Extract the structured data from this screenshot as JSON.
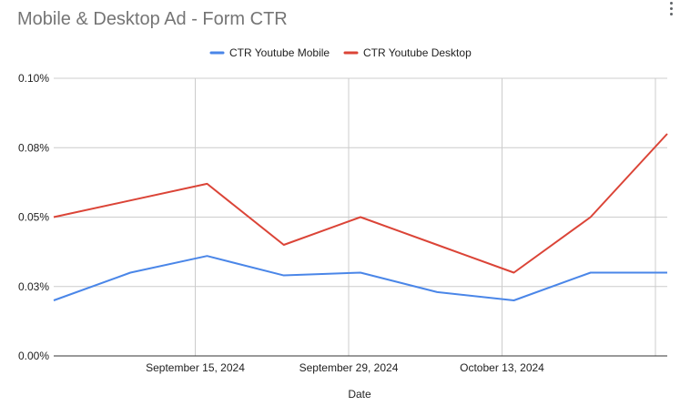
{
  "title": "Mobile & Desktop Ad - Form CTR",
  "menu_icon": "more-vert-icon",
  "chart_data": {
    "type": "line",
    "title": "Mobile & Desktop Ad - Form CTR",
    "xlabel": "Date",
    "ylabel": "",
    "x": [
      "2024-09-01",
      "2024-09-08",
      "2024-09-15",
      "2024-09-22",
      "2024-09-29",
      "2024-10-06",
      "2024-10-13",
      "2024-10-20",
      "2024-10-27"
    ],
    "x_ticks": [
      "September 15, 2024",
      "September 29, 2024",
      "October 13, 2024"
    ],
    "y_ticks": [
      "0.00%",
      "0.03%",
      "0.05%",
      "0.08%",
      "0.10%"
    ],
    "ylim": [
      0,
      0.1
    ],
    "grid": true,
    "legend_position": "top",
    "series": [
      {
        "name": "CTR Youtube Mobile",
        "color": "#4a86e8",
        "values": [
          0.02,
          0.03,
          0.036,
          0.029,
          0.03,
          0.023,
          0.02,
          0.03,
          0.03
        ]
      },
      {
        "name": "CTR Youtube Desktop",
        "color": "#db4437",
        "values": [
          0.05,
          0.056,
          0.062,
          0.04,
          0.05,
          0.04,
          0.03,
          0.05,
          0.08
        ]
      }
    ]
  }
}
